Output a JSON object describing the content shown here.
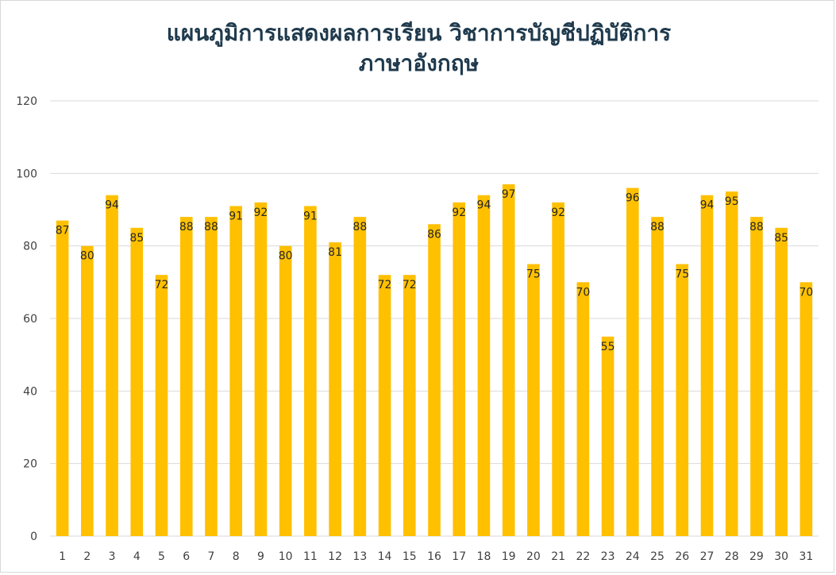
{
  "chart_data": {
    "type": "bar",
    "title_lines": [
      "แผนภูมิการแสดงผลการเรียน วิชาการบัญชีปฏิบัติการ",
      "ภาษาอังกฤษ"
    ],
    "categories": [
      "1",
      "2",
      "3",
      "4",
      "5",
      "6",
      "7",
      "8",
      "9",
      "10",
      "11",
      "12",
      "13",
      "14",
      "15",
      "16",
      "17",
      "18",
      "19",
      "20",
      "21",
      "22",
      "23",
      "24",
      "25",
      "26",
      "27",
      "28",
      "29",
      "30",
      "31"
    ],
    "values": [
      87,
      80,
      94,
      85,
      72,
      88,
      88,
      91,
      92,
      80,
      91,
      81,
      88,
      72,
      72,
      86,
      92,
      94,
      97,
      75,
      92,
      70,
      55,
      96,
      88,
      75,
      94,
      95,
      88,
      85,
      70
    ],
    "ylim": [
      0,
      120
    ],
    "yticks": [
      "0",
      "20",
      "40",
      "60",
      "80",
      "100",
      "120"
    ],
    "grid": true,
    "legend": "none",
    "bar_color": "#FFC000",
    "grid_color": "#D9D9D9"
  }
}
